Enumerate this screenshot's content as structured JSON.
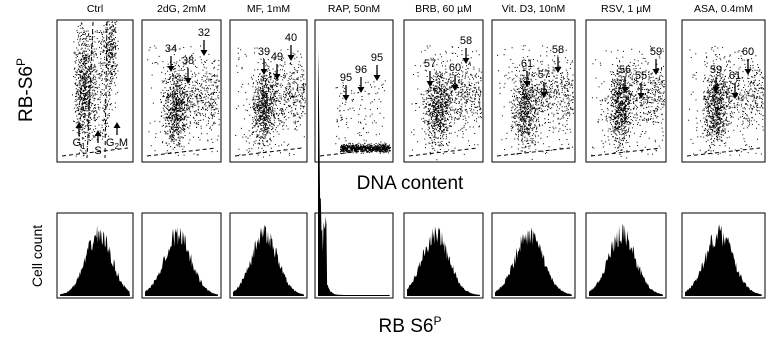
{
  "y_label": {
    "base": "RB-S6",
    "sup": "P"
  },
  "x_label": "DNA content",
  "hist_y_label": "Cell count",
  "hist_x_label": {
    "base": "RB S6",
    "sup": "P"
  },
  "ctrl_markers": [
    {
      "base": "G",
      "sub": "1"
    },
    {
      "base": "S"
    },
    {
      "base": "G",
      "sub": "2",
      "after": "M"
    }
  ],
  "panels": [
    {
      "title": "Ctrl",
      "arrows": []
    },
    {
      "title": "2dG, 2mM",
      "arrows": [
        "34",
        "38",
        "32"
      ]
    },
    {
      "title": "MF, 1mM",
      "arrows": [
        "39",
        "49",
        "40"
      ]
    },
    {
      "title": "RAP, 50nM",
      "arrows": [
        "95",
        "96",
        "95"
      ]
    },
    {
      "title": "BRB, 60 µM",
      "arrows": [
        "57",
        "60",
        "58"
      ]
    },
    {
      "title": "Vit. D3, 10nM",
      "arrows": [
        "61",
        "57",
        "58"
      ]
    },
    {
      "title": "RSV, 1 µM",
      "arrows": [
        "56",
        "55",
        "59"
      ]
    },
    {
      "title": "ASA, 0.4mM",
      "arrows": [
        "59",
        "61",
        "60"
      ]
    }
  ]
}
